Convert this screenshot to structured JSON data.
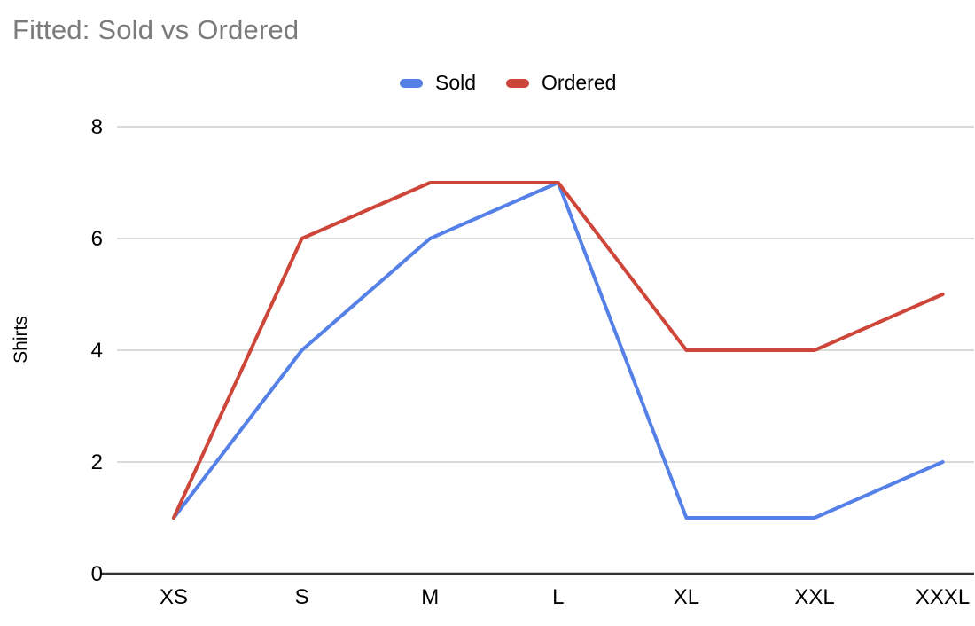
{
  "title": "Fitted: Sold vs Ordered",
  "y_axis_title": "Shirts",
  "legend": {
    "items": [
      {
        "label": "Sold",
        "color": "#5480e8"
      },
      {
        "label": "Ordered",
        "color": "#cd4639"
      }
    ]
  },
  "chart_data": {
    "type": "line",
    "title": "Fitted: Sold vs Ordered",
    "categories": [
      "XS",
      "S",
      "M",
      "L",
      "XL",
      "XXL",
      "XXXL"
    ],
    "series": [
      {
        "name": "Sold",
        "color": "#5480e8",
        "values": [
          1,
          4,
          6,
          7,
          1,
          1,
          2
        ]
      },
      {
        "name": "Ordered",
        "color": "#cd4639",
        "values": [
          1,
          6,
          7,
          7,
          4,
          4,
          5
        ]
      }
    ],
    "xlabel": "",
    "ylabel": "Shirts",
    "yticks": [
      0,
      2,
      4,
      6,
      8
    ],
    "ylim": [
      0,
      8
    ],
    "grid": true,
    "legend_position": "top",
    "colors": {
      "title_text": "#7b7b7b",
      "axis_text": "#000000",
      "gridline": "#dadada",
      "baseline": "#333333",
      "background": "#ffffff"
    }
  }
}
